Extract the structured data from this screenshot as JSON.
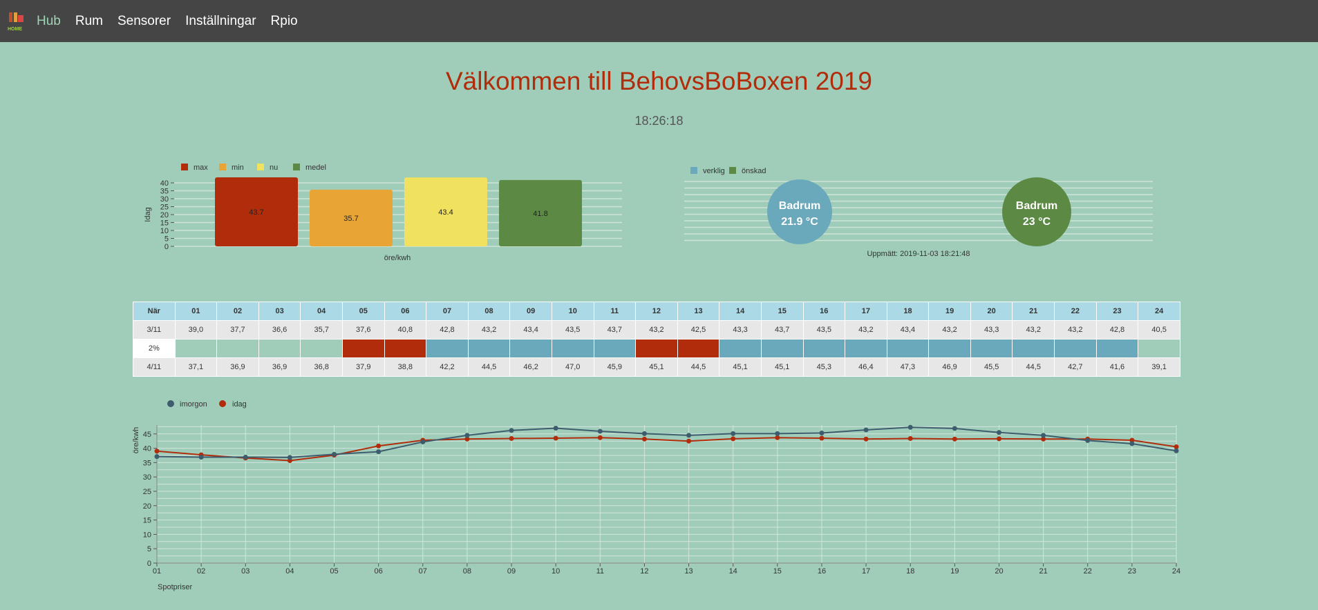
{
  "nav": {
    "logo_text": "HOME",
    "items": [
      {
        "label": "Hub",
        "active": true
      },
      {
        "label": "Rum",
        "active": false
      },
      {
        "label": "Sensorer",
        "active": false
      },
      {
        "label": "Inställningar",
        "active": false
      },
      {
        "label": "Rpio",
        "active": false
      }
    ]
  },
  "header": {
    "title": "Välkommen till BehovsBoBoxen 2019",
    "clock": "18:26:18"
  },
  "colors": {
    "max": "#b02c0a",
    "min": "#e8a535",
    "nu": "#f0e25e",
    "medel": "#5c8a44",
    "verklig": "#6aa8bc",
    "onskad": "#5c8a44",
    "imorgon": "#3d5c6e",
    "idag": "#b02c0a"
  },
  "bar_chart": {
    "chart_data": {
      "type": "bar",
      "categories": [
        "max",
        "min",
        "nu",
        "medel"
      ],
      "values": [
        43.7,
        35.7,
        43.4,
        41.8
      ],
      "value_labels": [
        "43.7",
        "35.7",
        "43.4",
        "41.8"
      ],
      "xlabel": "öre/kwh",
      "ylabel": "Idag",
      "ylim": [
        0,
        40
      ],
      "yticks": [
        0,
        5,
        10,
        15,
        20,
        25,
        30,
        35,
        40
      ],
      "legend": [
        "max",
        "min",
        "nu",
        "medel"
      ]
    }
  },
  "temp_chart": {
    "legend": [
      "verklig",
      "önskad"
    ],
    "bubbles": [
      {
        "room": "Badrum",
        "value": "21.9 °C",
        "kind": "verklig"
      },
      {
        "room": "Badrum",
        "value": "23 °C",
        "kind": "onskad"
      }
    ],
    "measured": "Uppmätt: 2019-11-03 18:21:48"
  },
  "price_table": {
    "header_label": "När",
    "hours": [
      "01",
      "02",
      "03",
      "04",
      "05",
      "06",
      "07",
      "08",
      "09",
      "10",
      "11",
      "12",
      "13",
      "14",
      "15",
      "16",
      "17",
      "18",
      "19",
      "20",
      "21",
      "22",
      "23",
      "24"
    ],
    "row_today": {
      "label": "3/11",
      "values": [
        "39,0",
        "37,7",
        "36,6",
        "35,7",
        "37,6",
        "40,8",
        "42,8",
        "43,2",
        "43,4",
        "43,5",
        "43,7",
        "43,2",
        "42,5",
        "43,3",
        "43,7",
        "43,5",
        "43,2",
        "43,4",
        "43,2",
        "43,3",
        "43,2",
        "43,2",
        "42,8",
        "40,5"
      ]
    },
    "row_status": {
      "label": "2%",
      "states": [
        "empty",
        "empty",
        "empty",
        "empty",
        "high",
        "high",
        "ok",
        "ok",
        "ok",
        "ok",
        "ok",
        "high",
        "high",
        "ok",
        "ok",
        "ok",
        "ok",
        "ok",
        "ok",
        "ok",
        "ok",
        "ok",
        "ok",
        "empty"
      ]
    },
    "row_tomorrow": {
      "label": "4/11",
      "values": [
        "37,1",
        "36,9",
        "36,9",
        "36,8",
        "37,9",
        "38,8",
        "42,2",
        "44,5",
        "46,2",
        "47,0",
        "45,9",
        "45,1",
        "44,5",
        "45,1",
        "45,1",
        "45,3",
        "46,4",
        "47,3",
        "46,9",
        "45,5",
        "44,5",
        "42,7",
        "41,6",
        "39,1"
      ]
    }
  },
  "line_chart": {
    "chart_data": {
      "type": "line",
      "x": [
        "01",
        "02",
        "03",
        "04",
        "05",
        "06",
        "07",
        "08",
        "09",
        "10",
        "11",
        "12",
        "13",
        "14",
        "15",
        "16",
        "17",
        "18",
        "19",
        "20",
        "21",
        "22",
        "23",
        "24"
      ],
      "series": [
        {
          "name": "imorgon",
          "values": [
            37.1,
            36.9,
            36.9,
            36.8,
            37.9,
            38.8,
            42.2,
            44.5,
            46.2,
            47.0,
            45.9,
            45.1,
            44.5,
            45.1,
            45.1,
            45.3,
            46.4,
            47.3,
            46.9,
            45.5,
            44.5,
            42.7,
            41.6,
            39.1
          ]
        },
        {
          "name": "idag",
          "values": [
            39.0,
            37.7,
            36.6,
            35.7,
            37.6,
            40.8,
            42.8,
            43.2,
            43.4,
            43.5,
            43.7,
            43.2,
            42.5,
            43.3,
            43.7,
            43.5,
            43.2,
            43.4,
            43.2,
            43.3,
            43.2,
            43.2,
            42.8,
            40.5
          ]
        }
      ],
      "ylabel": "öre/kwh",
      "xlabel": "Spotpriser",
      "ylim": [
        0,
        50
      ],
      "yticks": [
        0,
        5,
        10,
        15,
        20,
        25,
        30,
        35,
        40,
        45
      ]
    }
  }
}
